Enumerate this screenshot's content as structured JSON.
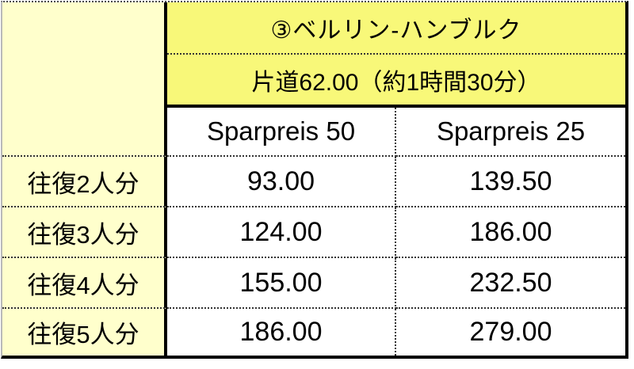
{
  "table": {
    "title": "③ベルリン-ハンブルク",
    "subtitle": "片道62.00（約1時間30分）",
    "columns": [
      "Sparpreis 50",
      "Sparpreis 25"
    ],
    "rows": [
      {
        "label": "往復2人分",
        "values": [
          "93.00",
          "139.50"
        ]
      },
      {
        "label": "往復3人分",
        "values": [
          "124.00",
          "186.00"
        ]
      },
      {
        "label": "往復4人分",
        "values": [
          "155.00",
          "232.50"
        ]
      },
      {
        "label": "往復5人分",
        "values": [
          "186.00",
          "279.00"
        ]
      }
    ]
  },
  "colors": {
    "title_background": "#f8f879",
    "label_background": "#ffffcc",
    "cell_background": "#ffffff",
    "border": "#000000",
    "text": "#000000"
  }
}
